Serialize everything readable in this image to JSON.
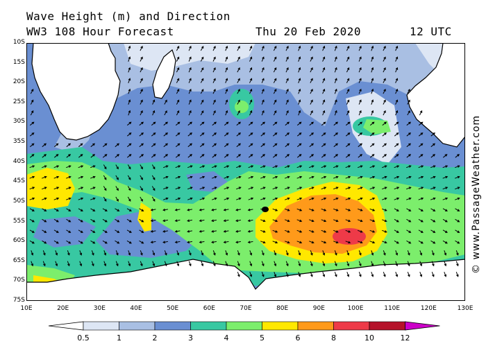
{
  "title": {
    "line1": "Wave Height (m) and Direction",
    "model": "WW3 108 Hour Forecast",
    "date": "Thu 20 Feb 2020",
    "time": "12 UTC"
  },
  "credit": "© www.PassageWeather.com",
  "map": {
    "lat_labels": [
      "10S",
      "15S",
      "20S",
      "25S",
      "30S",
      "35S",
      "40S",
      "45S",
      "50S",
      "55S",
      "60S",
      "65S",
      "70S",
      "75S"
    ],
    "lon_labels": [
      "10E",
      "20E",
      "30E",
      "40E",
      "50E",
      "60E",
      "70E",
      "80E",
      "90E",
      "100E",
      "110E",
      "120E",
      "130E"
    ],
    "lat_range": [
      -10,
      -75
    ],
    "lon_range": [
      10,
      130
    ]
  },
  "legend": {
    "levels": [
      "0.5",
      "1",
      "2",
      "3",
      "4",
      "5",
      "6",
      "8",
      "10",
      "12"
    ],
    "colors": [
      "#ffffff",
      "#dde6f4",
      "#a9bfe3",
      "#6a8fd2",
      "#38c8a2",
      "#7cee6c",
      "#ffe800",
      "#ff9a1a",
      "#ee3a48",
      "#b5122a",
      "#cc00c8"
    ]
  },
  "colors": {
    "land": "#ffffff",
    "coast": "#000000",
    "arrow": "#000000"
  }
}
